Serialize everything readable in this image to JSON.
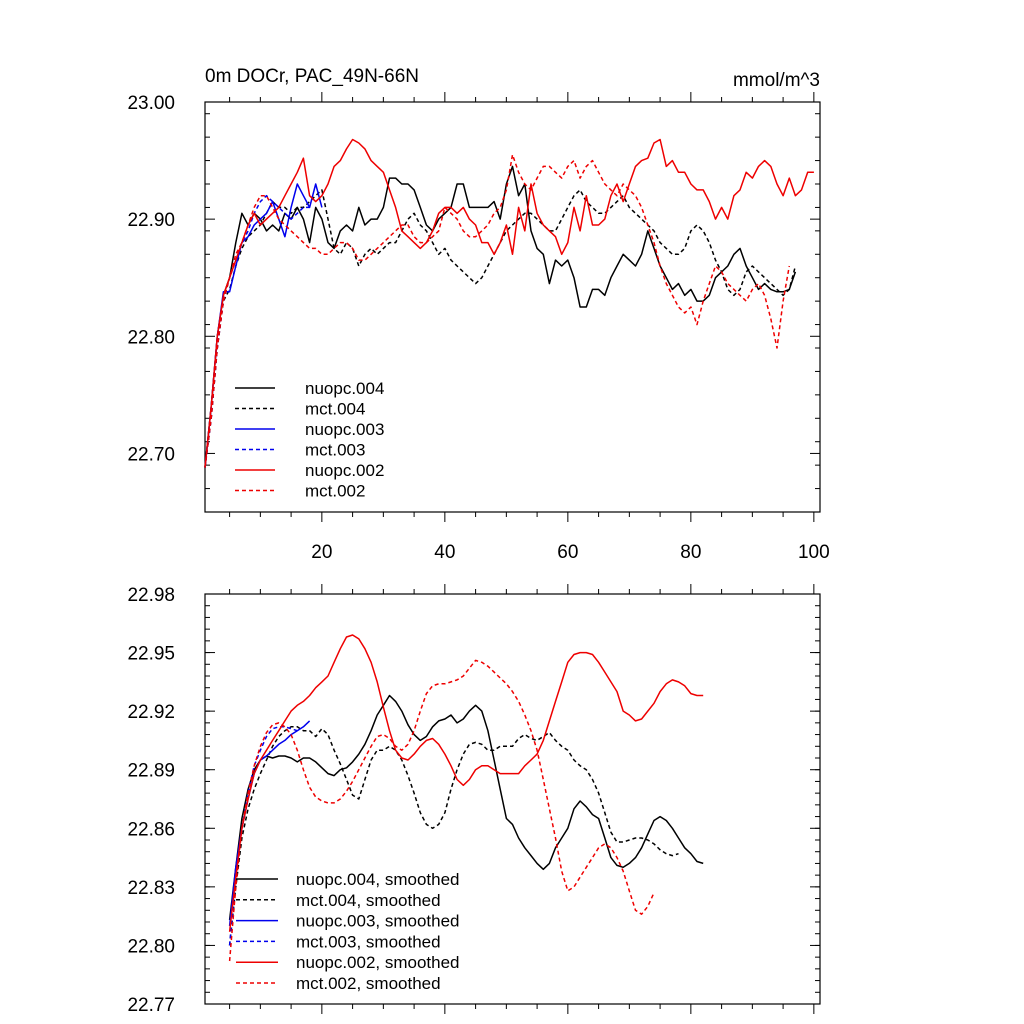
{
  "colors": {
    "black": "#000000",
    "blue": "#0000ee",
    "red": "#ee0000"
  },
  "chart_data": [
    {
      "type": "line",
      "title": "0m DOCr, PAC_49N-66N",
      "units": "mmol/m^3",
      "xlim": [
        1,
        101
      ],
      "ylim": [
        22.65,
        23.0
      ],
      "yticks": [
        22.7,
        22.8,
        22.9,
        23.0
      ],
      "yticklabels": [
        "22.70",
        "22.80",
        "22.90",
        "23.00"
      ],
      "xticks": [
        20,
        40,
        60,
        80,
        100
      ],
      "xticklabels": [
        "20",
        "40",
        "60",
        "80",
        "100"
      ],
      "legend_position": "lower-left",
      "series": [
        {
          "name": "nuopc.004",
          "color": "#000000",
          "dash": "solid",
          "x_start": 1,
          "values": [
            22.688,
            22.74,
            22.8,
            22.835,
            22.85,
            22.88,
            22.905,
            22.895,
            22.905,
            22.9,
            22.89,
            22.895,
            22.89,
            22.905,
            22.9,
            22.91,
            22.9,
            22.88,
            22.91,
            22.9,
            22.88,
            22.875,
            22.89,
            22.895,
            22.89,
            22.91,
            22.895,
            22.9,
            22.9,
            22.91,
            22.935,
            22.935,
            22.93,
            22.93,
            22.925,
            22.91,
            22.895,
            22.89,
            22.9,
            22.905,
            22.91,
            22.93,
            22.93,
            22.91,
            22.91,
            22.91,
            22.91,
            22.915,
            22.9,
            22.93,
            22.945,
            22.92,
            22.93,
            22.89,
            22.875,
            22.87,
            22.845,
            22.865,
            22.86,
            22.865,
            22.85,
            22.825,
            22.825,
            22.84,
            22.84,
            22.835,
            22.85,
            22.86,
            22.87,
            22.865,
            22.86,
            22.87,
            22.89,
            22.875,
            22.86,
            22.85,
            22.84,
            22.845,
            22.835,
            22.84,
            22.83,
            22.83,
            22.835,
            22.85,
            22.855,
            22.86,
            22.87,
            22.875,
            22.86,
            22.85,
            22.84,
            22.845,
            22.84,
            22.838,
            22.838,
            22.84,
            22.855
          ]
        },
        {
          "name": "mct.004",
          "color": "#000000",
          "dash": "dashed",
          "x_start": 1,
          "values": [
            22.688,
            22.73,
            22.79,
            22.83,
            22.84,
            22.86,
            22.875,
            22.885,
            22.89,
            22.895,
            22.905,
            22.915,
            22.91,
            22.91,
            22.905,
            22.91,
            22.91,
            22.915,
            22.92,
            22.925,
            22.9,
            22.875,
            22.87,
            22.88,
            22.875,
            22.86,
            22.87,
            22.875,
            22.87,
            22.875,
            22.88,
            22.88,
            22.89,
            22.9,
            22.905,
            22.895,
            22.89,
            22.88,
            22.87,
            22.875,
            22.865,
            22.86,
            22.855,
            22.85,
            22.845,
            22.85,
            22.86,
            22.87,
            22.88,
            22.89,
            22.895,
            22.9,
            22.905,
            22.905,
            22.9,
            22.895,
            22.89,
            22.89,
            22.9,
            22.91,
            22.92,
            22.925,
            22.915,
            22.91,
            22.905,
            22.905,
            22.91,
            22.915,
            22.92,
            22.91,
            22.905,
            22.9,
            22.895,
            22.89,
            22.88,
            22.875,
            22.87,
            22.87,
            22.875,
            22.89,
            22.895,
            22.89,
            22.88,
            22.865,
            22.855,
            22.84,
            22.835,
            22.84,
            22.855,
            22.86,
            22.855,
            22.85,
            22.845,
            22.84,
            22.835,
            22.84,
            22.86
          ]
        },
        {
          "name": "nuopc.003",
          "color": "#0000ee",
          "dash": "solid",
          "x_start": 1,
          "values": [
            22.688,
            22.74,
            22.8,
            22.838,
            22.838,
            22.86,
            22.88,
            22.885,
            22.895,
            22.9,
            22.905,
            22.915,
            22.9,
            22.885,
            22.91,
            22.93,
            22.92,
            22.91,
            22.93,
            22.91
          ]
        },
        {
          "name": "mct.003",
          "color": "#0000ee",
          "dash": "dashed",
          "x_start": 1,
          "values": [
            22.688,
            22.73,
            22.79,
            22.83,
            22.85,
            22.865,
            22.88,
            22.89,
            22.905,
            22.915,
            22.92,
            22.915,
            22.91,
            22.905,
            22.9,
            22.905,
            22.91,
            22.91
          ]
        },
        {
          "name": "nuopc.002",
          "color": "#ee0000",
          "dash": "solid",
          "x_start": 1,
          "values": [
            22.688,
            22.74,
            22.8,
            22.835,
            22.85,
            22.865,
            22.88,
            22.895,
            22.905,
            22.895,
            22.9,
            22.905,
            22.91,
            22.92,
            22.93,
            22.94,
            22.952,
            22.92,
            22.915,
            22.92,
            22.93,
            22.945,
            22.95,
            22.96,
            22.968,
            22.965,
            22.96,
            22.95,
            22.945,
            22.94,
            22.925,
            22.91,
            22.89,
            22.885,
            22.88,
            22.875,
            22.88,
            22.89,
            22.905,
            22.91,
            22.91,
            22.905,
            22.91,
            22.9,
            22.895,
            22.88,
            22.88,
            22.87,
            22.88,
            22.895,
            22.87,
            22.91,
            22.89,
            22.93,
            22.905,
            22.895,
            22.89,
            22.885,
            22.87,
            22.88,
            22.91,
            22.89,
            22.92,
            22.895,
            22.895,
            22.9,
            22.92,
            22.93,
            22.915,
            22.93,
            22.945,
            22.95,
            22.952,
            22.965,
            22.968,
            22.945,
            22.95,
            22.94,
            22.94,
            22.93,
            22.925,
            22.925,
            22.915,
            22.9,
            22.91,
            22.9,
            22.92,
            22.925,
            22.94,
            22.935,
            22.945,
            22.95,
            22.945,
            22.93,
            22.92,
            22.935,
            22.92,
            22.925,
            22.94,
            22.94
          ]
        },
        {
          "name": "mct.002",
          "color": "#ee0000",
          "dash": "dashed",
          "x_start": 1,
          "values": [
            22.688,
            22.73,
            22.79,
            22.83,
            22.85,
            22.87,
            22.88,
            22.895,
            22.91,
            22.92,
            22.92,
            22.91,
            22.9,
            22.895,
            22.89,
            22.885,
            22.88,
            22.875,
            22.875,
            22.87,
            22.87,
            22.875,
            22.88,
            22.88,
            22.875,
            22.865,
            22.865,
            22.87,
            22.875,
            22.88,
            22.885,
            22.89,
            22.895,
            22.895,
            22.885,
            22.88,
            22.88,
            22.885,
            22.89,
            22.91,
            22.905,
            22.9,
            22.89,
            22.885,
            22.885,
            22.89,
            22.895,
            22.905,
            22.91,
            22.925,
            22.955,
            22.94,
            22.93,
            22.925,
            22.935,
            22.945,
            22.945,
            22.94,
            22.935,
            22.945,
            22.95,
            22.935,
            22.945,
            22.95,
            22.94,
            22.93,
            22.925,
            22.92,
            22.93,
            22.925,
            22.92,
            22.91,
            22.895,
            22.88,
            22.86,
            22.845,
            22.835,
            22.825,
            22.82,
            22.825,
            22.81,
            22.83,
            22.845,
            22.86,
            22.855,
            22.845,
            22.84,
            22.835,
            22.83,
            22.84,
            22.845,
            22.835,
            22.815,
            22.79,
            22.83,
            22.86
          ]
        }
      ],
      "legend_labels": [
        "nuopc.004",
        "mct.004",
        "nuopc.003",
        "mct.003",
        "nuopc.002",
        "mct.002"
      ]
    },
    {
      "type": "line",
      "title": "",
      "xlim": [
        1,
        101
      ],
      "ylim": [
        22.77,
        22.98
      ],
      "yticks": [
        22.77,
        22.8,
        22.83,
        22.86,
        22.89,
        22.92,
        22.95,
        22.98
      ],
      "yticklabels": [
        "22.77",
        "22.80",
        "22.83",
        "22.86",
        "22.89",
        "22.92",
        "22.95",
        "22.98"
      ],
      "xticks": [
        20,
        40,
        60,
        80,
        100
      ],
      "legend_position": "lower-left",
      "series": [
        {
          "name": "nuopc.004, smoothed",
          "color": "#000000",
          "dash": "solid",
          "x_start": 5,
          "values": [
            22.813,
            22.84,
            22.865,
            22.88,
            22.89,
            22.895,
            22.897,
            22.896,
            22.897,
            22.897,
            22.896,
            22.894,
            22.896,
            22.896,
            22.894,
            22.891,
            22.888,
            22.887,
            22.89,
            22.891,
            22.894,
            22.898,
            22.903,
            22.91,
            22.918,
            22.923,
            22.928,
            22.925,
            22.92,
            22.913,
            22.908,
            22.905,
            22.907,
            22.912,
            22.915,
            22.916,
            22.918,
            22.914,
            22.916,
            22.92,
            22.923,
            22.92,
            22.91,
            22.895,
            22.88,
            22.865,
            22.862,
            22.855,
            22.85,
            22.846,
            22.842,
            22.839,
            22.842,
            22.85,
            22.855,
            22.86,
            22.87,
            22.874,
            22.871,
            22.867,
            22.865,
            22.855,
            22.845,
            22.841,
            22.84,
            22.842,
            22.845,
            22.85,
            22.857,
            22.864,
            22.866,
            22.864,
            22.86,
            22.855,
            22.85,
            22.847,
            22.843,
            22.842
          ]
        },
        {
          "name": "mct.004, smoothed",
          "color": "#000000",
          "dash": "dashed",
          "x_start": 5,
          "values": [
            22.8,
            22.83,
            22.855,
            22.87,
            22.88,
            22.888,
            22.895,
            22.902,
            22.907,
            22.91,
            22.912,
            22.912,
            22.91,
            22.91,
            22.907,
            22.911,
            22.908,
            22.9,
            22.893,
            22.885,
            22.877,
            22.875,
            22.885,
            22.895,
            22.9,
            22.9,
            22.902,
            22.9,
            22.895,
            22.887,
            22.878,
            22.868,
            22.862,
            22.86,
            22.862,
            22.868,
            22.88,
            22.89,
            22.898,
            22.903,
            22.904,
            22.903,
            22.9,
            22.9,
            22.902,
            22.902,
            22.902,
            22.906,
            22.908,
            22.906,
            22.905,
            22.907,
            22.909,
            22.905,
            22.902,
            22.9,
            22.895,
            22.892,
            22.89,
            22.885,
            22.878,
            22.868,
            22.858,
            22.853,
            22.853,
            22.854,
            22.855,
            22.855,
            22.854,
            22.852,
            22.849,
            22.847,
            22.846,
            22.847
          ]
        },
        {
          "name": "nuopc.003, smoothed",
          "color": "#0000ee",
          "dash": "solid",
          "x_start": 5,
          "values": [
            22.81,
            22.84,
            22.86,
            22.875,
            22.888,
            22.895,
            22.897,
            22.9,
            22.903,
            22.905,
            22.908,
            22.91,
            22.912,
            22.915
          ]
        },
        {
          "name": "mct.003, smoothed",
          "color": "#0000ee",
          "dash": "dashed",
          "x_start": 5,
          "values": [
            22.8,
            22.835,
            22.86,
            22.878,
            22.892,
            22.9,
            22.907,
            22.911,
            22.912,
            22.912,
            22.911,
            22.91
          ]
        },
        {
          "name": "nuopc.002, smoothed",
          "color": "#ee0000",
          "dash": "solid",
          "x_start": 5,
          "values": [
            22.807,
            22.835,
            22.86,
            22.875,
            22.888,
            22.895,
            22.9,
            22.905,
            22.91,
            22.915,
            22.92,
            22.923,
            22.925,
            22.928,
            22.932,
            22.935,
            22.938,
            22.945,
            22.952,
            22.958,
            22.959,
            22.957,
            22.952,
            22.945,
            22.935,
            22.922,
            22.91,
            22.9,
            22.896,
            22.895,
            22.898,
            22.902,
            22.905,
            22.906,
            22.903,
            22.898,
            22.892,
            22.885,
            22.882,
            22.885,
            22.89,
            22.892,
            22.892,
            22.89,
            22.888,
            22.888,
            22.888,
            22.888,
            22.892,
            22.895,
            22.898,
            22.905,
            22.915,
            22.925,
            22.935,
            22.945,
            22.949,
            22.95,
            22.95,
            22.949,
            22.945,
            22.94,
            22.935,
            22.93,
            22.92,
            22.918,
            22.915,
            22.916,
            22.92,
            22.924,
            22.93,
            22.934,
            22.936,
            22.935,
            22.933,
            22.929,
            22.928,
            22.928
          ]
        },
        {
          "name": "mct.002, smoothed",
          "color": "#ee0000",
          "dash": "dashed",
          "x_start": 5,
          "values": [
            22.792,
            22.83,
            22.86,
            22.878,
            22.892,
            22.902,
            22.909,
            22.913,
            22.914,
            22.912,
            22.908,
            22.9,
            22.89,
            22.881,
            22.876,
            22.874,
            22.873,
            22.873,
            22.875,
            22.879,
            22.884,
            22.89,
            22.896,
            22.902,
            22.907,
            22.908,
            22.906,
            22.902,
            22.9,
            22.903,
            22.91,
            22.92,
            22.929,
            22.933,
            22.934,
            22.934,
            22.935,
            22.936,
            22.938,
            22.942,
            22.946,
            22.945,
            22.943,
            22.94,
            22.937,
            22.934,
            22.93,
            22.925,
            22.918,
            22.91,
            22.9,
            22.885,
            22.87,
            22.855,
            22.838,
            22.828,
            22.83,
            22.835,
            22.84,
            22.845,
            22.85,
            22.852,
            22.85,
            22.845,
            22.838,
            22.828,
            22.818,
            22.816,
            22.82,
            22.827
          ]
        }
      ],
      "legend_labels": [
        "nuopc.004, smoothed",
        "mct.004, smoothed",
        "nuopc.003, smoothed",
        "mct.003, smoothed",
        "nuopc.002, smoothed",
        "mct.002, smoothed"
      ]
    }
  ]
}
